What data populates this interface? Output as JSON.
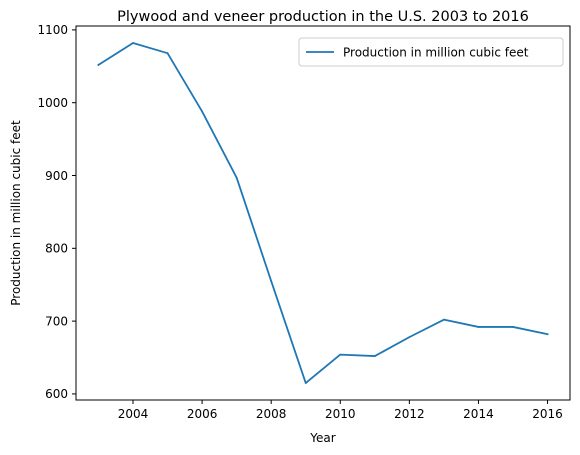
{
  "chart_data": {
    "type": "line",
    "title": "Plywood and veneer production in the U.S. 2003 to 2016",
    "xlabel": "Year",
    "ylabel": "Production in million cubic feet",
    "x": [
      2003,
      2004,
      2005,
      2006,
      2007,
      2008,
      2009,
      2010,
      2011,
      2012,
      2013,
      2014,
      2015,
      2016
    ],
    "series": [
      {
        "name": "Production in million cubic feet",
        "color": "#1f77b4",
        "values": [
          1052,
          1082,
          1068,
          988,
          897,
          755,
          615,
          654,
          652,
          678,
          702,
          692,
          692,
          682
        ]
      }
    ],
    "xlim": [
      2002.35,
      2016.65
    ],
    "ylim": [
      591.65,
      1105.35
    ],
    "xticks": [
      2004,
      2006,
      2008,
      2010,
      2012,
      2014,
      2016
    ],
    "xtick_labels": [
      "2004",
      "2006",
      "2008",
      "2010",
      "2012",
      "2014",
      "2016"
    ],
    "yticks": [
      600,
      700,
      800,
      900,
      1000,
      1100
    ],
    "ytick_labels": [
      "600",
      "700",
      "800",
      "900",
      "1000",
      "1100"
    ],
    "grid": false,
    "legend_position": "top-right"
  }
}
